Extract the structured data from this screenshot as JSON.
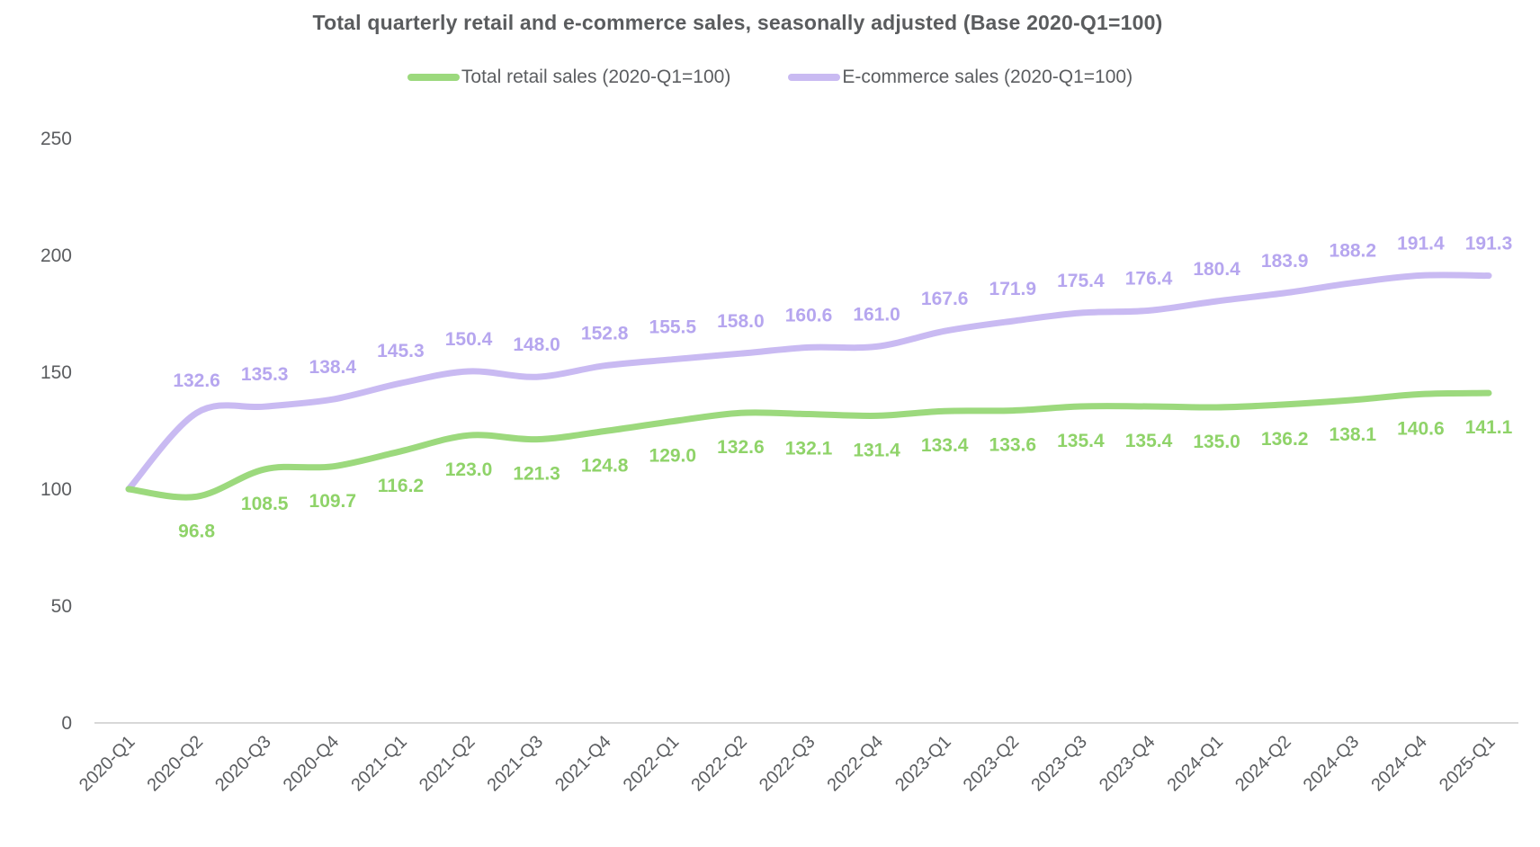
{
  "title": "Total quarterly retail and e-commerce sales, seasonally adjusted (Base 2020-Q1=100)",
  "legend": [
    {
      "label": "Total retail sales (2020-Q1=100)",
      "color": "#9cd97d"
    },
    {
      "label": "E-commerce sales (2020-Q1=100)",
      "color": "#c9baf2"
    }
  ],
  "chart_data": {
    "type": "line",
    "title": "Total quarterly retail and e-commerce sales, seasonally adjusted (Base 2020-Q1=100)",
    "categories": [
      "2020-Q1",
      "2020-Q2",
      "2020-Q3",
      "2020-Q4",
      "2021-Q1",
      "2021-Q2",
      "2021-Q3",
      "2021-Q4",
      "2022-Q1",
      "2022-Q2",
      "2022-Q3",
      "2022-Q4",
      "2023-Q1",
      "2023-Q2",
      "2023-Q3",
      "2023-Q4",
      "2024-Q1",
      "2024-Q2",
      "2024-Q3",
      "2024-Q4",
      "2025-Q1"
    ],
    "series": [
      {
        "name": "Total retail sales (2020-Q1=100)",
        "color": "#9cd97d",
        "label_color": "#8fd369",
        "label_position": "below",
        "values": [
          100.0,
          96.8,
          108.5,
          109.7,
          116.2,
          123.0,
          121.3,
          124.8,
          129.0,
          132.6,
          132.1,
          131.4,
          133.4,
          133.6,
          135.4,
          135.4,
          135.0,
          136.2,
          138.1,
          140.6,
          141.1
        ]
      },
      {
        "name": "E-commerce sales (2020-Q1=100)",
        "color": "#c9baf2",
        "label_color": "#b6a6ef",
        "label_position": "above",
        "values": [
          100.0,
          132.6,
          135.3,
          138.4,
          145.3,
          150.4,
          148.0,
          152.8,
          155.5,
          158.0,
          160.6,
          161.0,
          167.6,
          171.9,
          175.4,
          176.4,
          180.4,
          183.9,
          188.2,
          191.4,
          191.3
        ]
      }
    ],
    "xlabel": "",
    "ylabel": "",
    "ylim": [
      0,
      250
    ],
    "yticks": [
      0,
      50,
      100,
      150,
      200,
      250
    ],
    "grid": false,
    "legend_position": "top",
    "data_labels": true,
    "note": "First point (2020-Q1, base = 100) carries no data label for either series"
  },
  "axis_colors": {
    "tick_text": "#5b5d60",
    "baseline": "#d8d8d8"
  }
}
